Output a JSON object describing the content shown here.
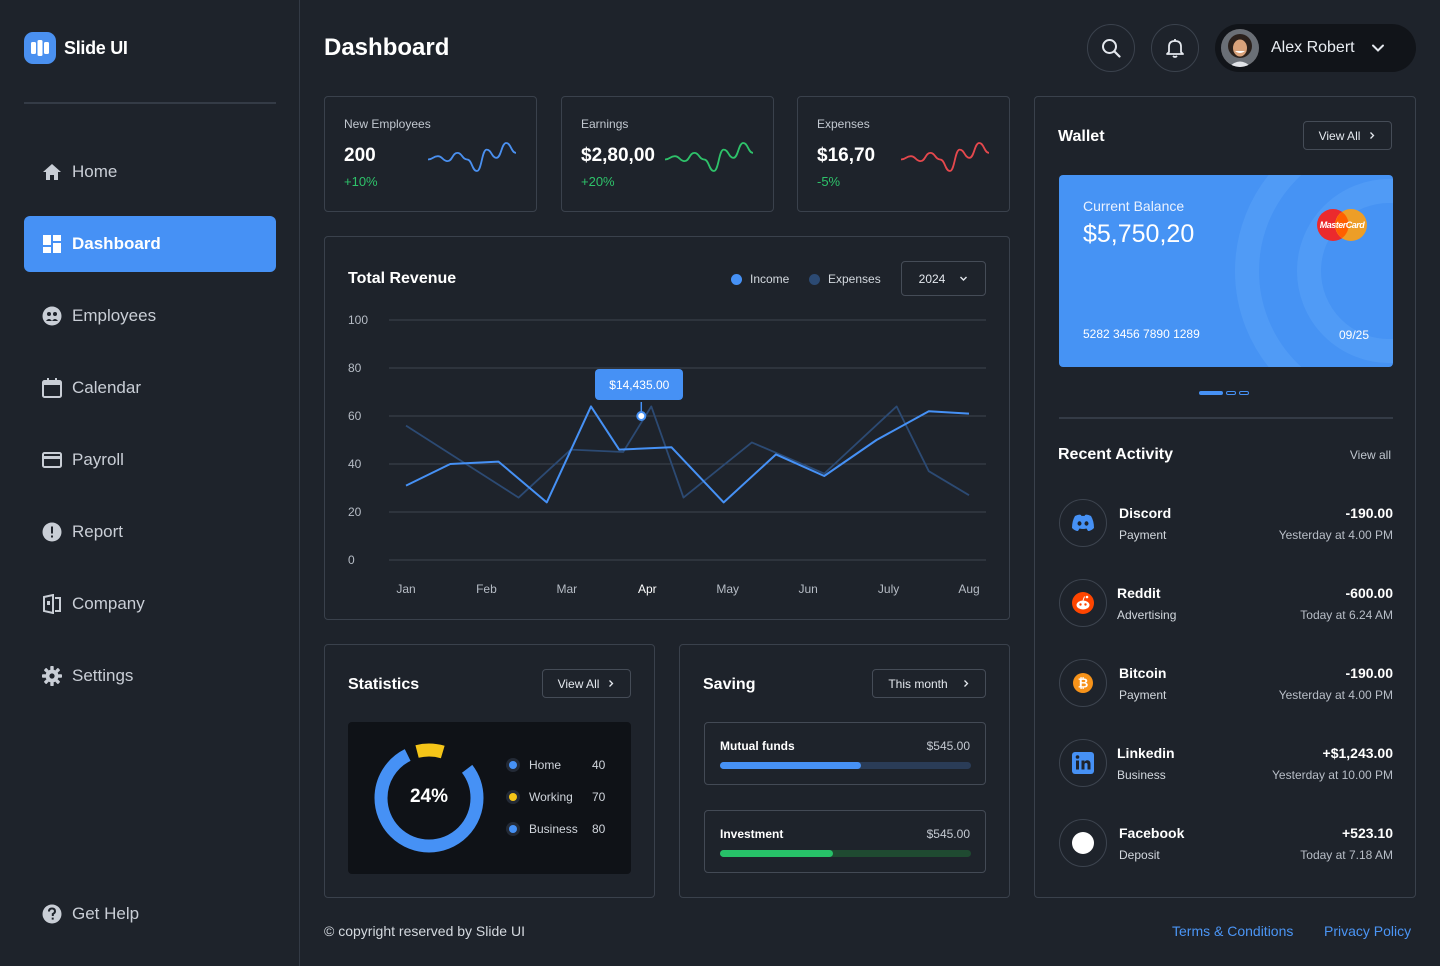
{
  "brand": {
    "name": "Slide UI"
  },
  "sidebar": {
    "items": [
      {
        "label": "Home",
        "icon": "home-icon"
      },
      {
        "label": "Dashboard",
        "icon": "dashboard-icon",
        "active": true
      },
      {
        "label": "Employees",
        "icon": "employees-icon"
      },
      {
        "label": "Calendar",
        "icon": "calendar-icon"
      },
      {
        "label": "Payroll",
        "icon": "payroll-icon"
      },
      {
        "label": "Report",
        "icon": "report-icon"
      },
      {
        "label": "Company",
        "icon": "company-icon"
      },
      {
        "label": "Settings",
        "icon": "settings-icon"
      }
    ],
    "help": {
      "label": "Get Help",
      "icon": "help-icon"
    }
  },
  "header": {
    "title": "Dashboard",
    "user": {
      "name": "Alex Robert"
    }
  },
  "kpis": [
    {
      "label": "New Employees",
      "value": "200",
      "change": "+10%",
      "trend": "up",
      "color": "#4a90f0",
      "spark": [
        16,
        18,
        15,
        20,
        16,
        9,
        22,
        17,
        26,
        20
      ]
    },
    {
      "label": "Earnings",
      "value": "$2,80,00",
      "change": "+20%",
      "trend": "up",
      "color": "#2ec26a",
      "spark": [
        16,
        18,
        15,
        20,
        16,
        9,
        22,
        17,
        26,
        20
      ]
    },
    {
      "label": "Expenses",
      "value": "$16,70",
      "change": "-5%",
      "trend": "down",
      "color": "#e5484d",
      "spark": [
        16,
        18,
        15,
        20,
        16,
        9,
        22,
        17,
        26,
        20
      ]
    }
  ],
  "colors": {
    "accent": "#4691f5",
    "positive": "#2ec26a",
    "negative": "#e5484d",
    "expense_series": "#2c4a73"
  },
  "revenue": {
    "title": "Total Revenue",
    "legend": {
      "income": "Income",
      "expenses": "Expenses"
    },
    "year": "2024",
    "tooltip": "$14,435.00"
  },
  "chart_data": {
    "type": "line",
    "title": "Total Revenue",
    "categories": [
      "Jan",
      "Feb",
      "Mar",
      "Apr",
      "May",
      "Jun",
      "July",
      "Aug"
    ],
    "ylim": [
      0,
      100
    ],
    "yticks": [
      0,
      20,
      40,
      60,
      80,
      100
    ],
    "grid": true,
    "legend_position": "top-right",
    "series": [
      {
        "name": "Income",
        "color": "#4691f5",
        "x": [
          0,
          0.55,
          1.15,
          1.75,
          2.3,
          2.65,
          3.3,
          3.95,
          4.6,
          5.2,
          5.85,
          6.5,
          7.0
        ],
        "values": [
          31,
          40,
          41,
          24,
          64,
          46,
          47,
          24,
          44,
          35,
          50,
          62,
          61
        ]
      },
      {
        "name": "Expenses",
        "color": "#2c4a73",
        "x": [
          0,
          1.4,
          2.05,
          2.7,
          3.05,
          3.45,
          4.3,
          5.2,
          6.1,
          6.5,
          7.0
        ],
        "values": [
          56,
          26,
          46,
          45,
          64,
          26,
          49,
          36,
          64,
          37,
          27
        ]
      }
    ],
    "annotation": {
      "category": "Apr",
      "value": 60,
      "label": "$14,435.00"
    }
  },
  "wallet": {
    "title": "Wallet",
    "view_all": "View All",
    "balance_label": "Current Balance",
    "balance": "$5,750,20",
    "card_number": "5282 3456 7890 1289",
    "expiry": "09/25",
    "brand_text": "MasterCard"
  },
  "activity": {
    "title": "Recent Activity",
    "view_all": "View all",
    "items": [
      {
        "name": "Discord",
        "type": "Payment",
        "amount": "-190.00",
        "time": "Yesterday at 4.00 PM",
        "icon": "discord-icon"
      },
      {
        "name": "Reddit",
        "type": "Advertising",
        "amount": "-600.00",
        "time": "Today at 6.24 AM",
        "icon": "reddit-icon"
      },
      {
        "name": "Bitcoin",
        "type": "Payment",
        "amount": "-190.00",
        "time": "Yesterday at 4.00 PM",
        "icon": "bitcoin-icon"
      },
      {
        "name": "Linkedin",
        "type": "Business",
        "amount": "+$1,243.00",
        "time": "Yesterday at 10.00 PM",
        "icon": "linkedin-icon"
      },
      {
        "name": "Facebook",
        "type": "Deposit",
        "amount": "+523.10",
        "time": "Today at 7.18 AM",
        "icon": "facebook-icon"
      }
    ]
  },
  "statistics": {
    "title": "Statistics",
    "view_all": "View All",
    "center": "24%",
    "items": [
      {
        "label": "Home",
        "value": "40",
        "color": "#4691f5"
      },
      {
        "label": "Working",
        "value": "70",
        "color": "#f5c518"
      },
      {
        "label": "Business",
        "value": "80",
        "color": "#4691f5"
      }
    ]
  },
  "saving": {
    "title": "Saving",
    "period": "This month",
    "items": [
      {
        "label": "Mutual funds",
        "amount": "$545.00",
        "progress": 0.56,
        "color": "#4691f5",
        "track": "#2a3c57"
      },
      {
        "label": "Investment",
        "amount": "$545.00",
        "progress": 0.45,
        "color": "#27c168",
        "track": "#1f4a31"
      }
    ]
  },
  "footer": {
    "copyright": "© copyright reserved by Slide UI",
    "terms": "Terms & Conditions",
    "privacy": "Privacy Policy"
  }
}
